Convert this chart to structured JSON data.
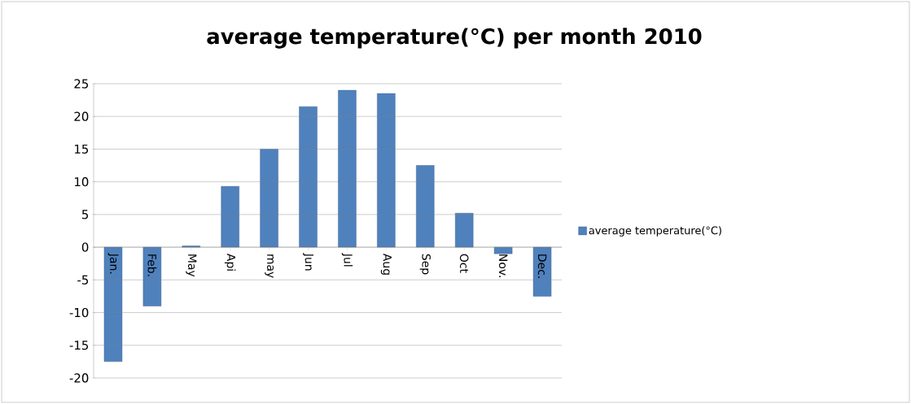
{
  "chart_data": {
    "type": "bar",
    "title": "average temperature(°C) per month  2010",
    "categories": [
      "Jan.",
      "Feb.",
      "May",
      "Api",
      "may",
      "Jun",
      "Jul",
      "Aug",
      "Sep",
      "Oct",
      "Nov.",
      "Dec."
    ],
    "series": [
      {
        "name": "average temperature(°C)",
        "color": "#4f81bd",
        "values": [
          -17.5,
          -9,
          0.2,
          9.3,
          15,
          21.5,
          24,
          23.5,
          12.5,
          5.2,
          -1,
          -7.5
        ]
      }
    ],
    "ylim": [
      -20,
      25
    ],
    "yticks": [
      -20,
      -15,
      -10,
      -5,
      0,
      5,
      10,
      15,
      20,
      25
    ],
    "grid": "y",
    "legend": "right"
  }
}
